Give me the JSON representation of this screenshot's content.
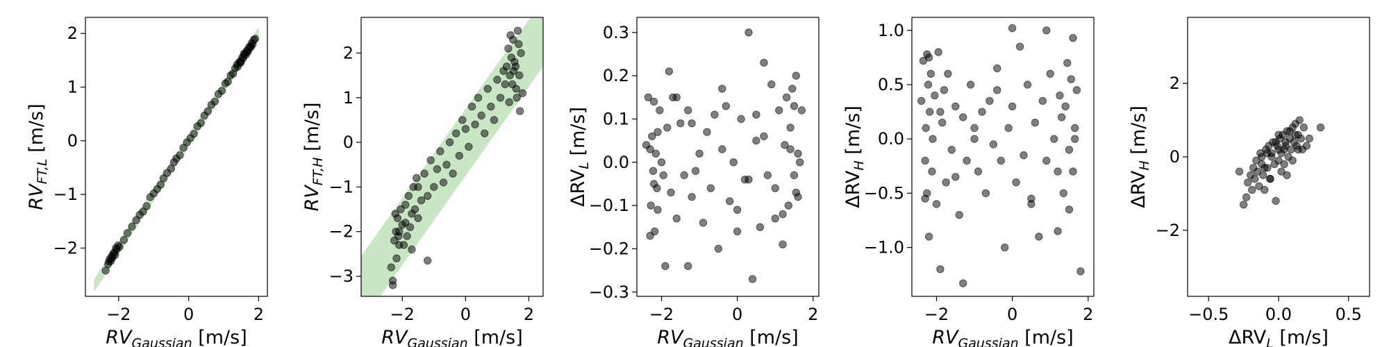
{
  "chart_data": [
    {
      "type": "scatter",
      "xlabel": {
        "main": "RV",
        "sub": "Gaussian",
        "unit": " [m/s]"
      },
      "ylabel": {
        "main": "RV",
        "sub": "FT,L",
        "unit": " [m/s]"
      },
      "xlim": [
        -2.95,
        2.25
      ],
      "ylim": [
        -2.9,
        2.3
      ],
      "xticks": [
        -2,
        0,
        2
      ],
      "yticks": [
        -2,
        -1,
        0,
        1,
        2
      ],
      "band": {
        "slope": 1,
        "intercept": 0,
        "half_width": 0.12,
        "x_range": [
          -2.7,
          2.0
        ]
      },
      "series": [
        {
          "x": [
            -2.37,
            -2.3,
            -2.28,
            -2.25,
            -2.22,
            -2.2,
            -2.18,
            -2.15,
            -2.12,
            -2.1,
            -2.08,
            -2.05,
            -2.02,
            -1.98,
            -1.85,
            -1.75,
            -1.62,
            -1.5,
            -1.4,
            -1.3,
            -1.2,
            -1.1,
            -1.0,
            -0.9,
            -0.8,
            -0.72,
            -0.62,
            -0.5,
            -0.42,
            -0.35,
            -0.25,
            -0.15,
            -0.05,
            0.05,
            0.15,
            0.25,
            0.35,
            0.45,
            0.55,
            0.65,
            0.75,
            0.85,
            0.95,
            1.05,
            1.12,
            1.2,
            1.27,
            1.33,
            1.4,
            1.45,
            1.5,
            1.53,
            1.56,
            1.6,
            1.63,
            1.66,
            1.7,
            1.73,
            1.76,
            1.8,
            1.83,
            1.86,
            1.9,
            1.38,
            1.48,
            1.58,
            1.68,
            1.78
          ],
          "y": [
            -2.42,
            -2.3,
            -2.25,
            -2.2,
            -2.24,
            -2.15,
            -2.18,
            -2.1,
            -2.08,
            -2.13,
            -2.0,
            -2.02,
            -1.95,
            -1.98,
            -1.85,
            -1.72,
            -1.6,
            -1.48,
            -1.38,
            -1.32,
            -1.22,
            -1.05,
            -0.98,
            -0.9,
            -0.82,
            -0.7,
            -0.6,
            -0.52,
            -0.4,
            -0.33,
            -0.27,
            -0.13,
            -0.03,
            0.05,
            0.13,
            0.27,
            0.33,
            0.47,
            0.55,
            0.67,
            0.73,
            0.87,
            0.93,
            1.07,
            1.1,
            1.22,
            1.25,
            1.35,
            1.38,
            1.47,
            1.48,
            1.55,
            1.54,
            1.62,
            1.6,
            1.68,
            1.68,
            1.75,
            1.74,
            1.82,
            1.8,
            1.88,
            1.9,
            1.42,
            1.45,
            1.62,
            1.65,
            1.75
          ]
        }
      ]
    },
    {
      "type": "scatter",
      "xlabel": {
        "main": "RV",
        "sub": "Gaussian",
        "unit": " [m/s]"
      },
      "ylabel": {
        "main": "RV",
        "sub": "FT,H",
        "unit": " [m/s]"
      },
      "xlim": [
        -3.3,
        2.45
      ],
      "ylim": [
        -3.45,
        2.8
      ],
      "xticks": [
        -2,
        0,
        2
      ],
      "yticks": [
        -3,
        -2,
        -1,
        0,
        1,
        2
      ],
      "band": {
        "slope": 1,
        "intercept": 0,
        "half_width": 0.75,
        "x_range": [
          -3.3,
          2.45
        ]
      },
      "series": [
        {
          "x": [
            -2.35,
            -2.3,
            -2.25,
            -2.22,
            -2.2,
            -2.18,
            -2.15,
            -2.12,
            -2.1,
            -2.05,
            -2.0,
            -1.95,
            -1.9,
            -1.85,
            -1.8,
            -1.75,
            -1.7,
            -1.65,
            -1.6,
            -1.55,
            -1.5,
            -1.4,
            -1.3,
            -1.2,
            -1.1,
            -1.0,
            -0.9,
            -0.8,
            -0.7,
            -0.6,
            -0.5,
            -0.4,
            -0.3,
            -0.2,
            -0.1,
            0.0,
            0.1,
            0.2,
            0.3,
            0.4,
            0.5,
            0.6,
            0.7,
            0.8,
            0.9,
            1.0,
            1.1,
            1.2,
            1.25,
            1.3,
            1.35,
            1.4,
            1.45,
            1.5,
            1.55,
            1.6,
            1.65,
            1.7,
            1.75,
            1.8,
            1.38,
            1.48,
            1.58,
            1.68,
            1.42,
            1.52,
            1.62,
            1.72,
            -2.3,
            -2.1,
            -1.9,
            -1.7,
            -1.5,
            -1.2
          ],
          "y": [
            -2.8,
            -3.1,
            -2.2,
            -1.6,
            -2.0,
            -2.6,
            -1.7,
            -2.1,
            -2.3,
            -1.5,
            -1.85,
            -2.3,
            -1.4,
            -2.1,
            -1.2,
            -1.9,
            -1.6,
            -1.0,
            -1.5,
            -0.8,
            -1.7,
            -1.3,
            -0.7,
            -1.2,
            -0.4,
            -1.0,
            -0.6,
            -0.2,
            -0.9,
            -0.5,
            0.0,
            -0.7,
            0.2,
            -0.3,
            0.5,
            0.3,
            -0.1,
            0.8,
            0.4,
            1.0,
            0.6,
            0.2,
            1.2,
            0.8,
            0.5,
            1.4,
            1.0,
            1.6,
            1.3,
            1.7,
            2.1,
            1.5,
            1.9,
            2.3,
            1.8,
            1.2,
            2.5,
            1.5,
            2.0,
            1.1,
            0.9,
            1.3,
            1.7,
            2.2,
            2.4,
            1.6,
            1.0,
            0.7,
            -3.2,
            -2.0,
            -1.8,
            -2.4,
            -1.0,
            -2.65
          ]
        }
      ]
    },
    {
      "type": "scatter",
      "xlabel": {
        "main": "RV",
        "sub": "Gaussian",
        "unit": " [m/s]"
      },
      "ylabel": {
        "main": "ΔRV",
        "sub": "L",
        "unit": " [m/s]"
      },
      "xlim": [
        -2.65,
        2.15
      ],
      "ylim": [
        -0.31,
        0.335
      ],
      "xticks": [
        -2,
        0,
        2
      ],
      "yticks": [
        -0.3,
        -0.2,
        -0.1,
        0.0,
        0.1,
        0.2,
        0.3
      ],
      "yfmt": 1,
      "series": [
        {
          "x": [
            -2.4,
            -2.35,
            -2.3,
            -2.28,
            -2.25,
            -2.22,
            -2.2,
            -2.18,
            -2.15,
            -2.12,
            -2.1,
            -2.05,
            -2.0,
            -1.95,
            -1.9,
            -1.85,
            -1.8,
            -1.75,
            -1.7,
            -1.6,
            -1.5,
            -1.4,
            -1.3,
            -1.2,
            -1.1,
            -1.0,
            -0.9,
            -0.8,
            -0.7,
            -0.6,
            -0.5,
            -0.4,
            -0.3,
            -0.2,
            -0.1,
            0.0,
            0.1,
            0.2,
            0.3,
            0.4,
            0.5,
            0.6,
            0.7,
            0.8,
            0.9,
            1.0,
            1.1,
            1.2,
            1.25,
            1.3,
            1.35,
            1.4,
            1.45,
            1.5,
            1.55,
            1.6,
            1.65,
            1.7,
            -2.3,
            -2.2,
            -2.1,
            -1.6,
            -1.2,
            -0.4,
            0.3,
            0.7,
            1.2,
            1.5,
            1.6,
            -1.3,
            0.0,
            0.5,
            1.0,
            1.4,
            1.55
          ],
          "y": [
            0.04,
            0.15,
            0.03,
            -0.1,
            0.06,
            -0.02,
            0.14,
            -0.16,
            0.02,
            -0.06,
            -0.11,
            0.12,
            0.0,
            -0.03,
            -0.24,
            0.08,
            0.21,
            -0.07,
            0.15,
            -0.13,
            0.09,
            -0.03,
            0.12,
            -0.08,
            -0.02,
            0.02,
            -0.14,
            0.07,
            -0.06,
            0.11,
            -0.2,
            0.03,
            0.13,
            -0.09,
            0.0,
            -0.11,
            0.1,
            -0.04,
            0.3,
            -0.27,
            0.05,
            -0.15,
            0.23,
            -0.03,
            0.18,
            -0.06,
            0.12,
            -0.19,
            0.04,
            0.15,
            -0.1,
            0.08,
            0.17,
            -0.03,
            0.2,
            -0.08,
            0.0,
            0.12,
            -0.17,
            -0.05,
            0.07,
            0.15,
            0.09,
            0.17,
            -0.04,
            0.06,
            -0.12,
            0.13,
            0.02,
            -0.24,
            -0.16,
            0.11,
            -0.13,
            0.03,
            -0.07
          ]
        }
      ]
    },
    {
      "type": "scatter",
      "xlabel": {
        "main": "RV",
        "sub": "Gaussian",
        "unit": " [m/s]"
      },
      "ylabel": {
        "main": "ΔRV",
        "sub": "H",
        "unit": " [m/s]"
      },
      "xlim": [
        -2.65,
        2.15
      ],
      "ylim": [
        -1.45,
        1.12
      ],
      "xticks": [
        -2,
        0,
        2
      ],
      "yticks": [
        -1.0,
        -0.5,
        0.0,
        0.5,
        1.0
      ],
      "yfmt": 1,
      "series": [
        {
          "x": [
            -2.4,
            -2.35,
            -2.3,
            -2.28,
            -2.25,
            -2.22,
            -2.2,
            -2.18,
            -2.15,
            -2.12,
            -2.1,
            -2.05,
            -2.0,
            -1.95,
            -1.9,
            -1.85,
            -1.8,
            -1.75,
            -1.7,
            -1.6,
            -1.5,
            -1.4,
            -1.3,
            -1.2,
            -1.1,
            -1.0,
            -0.9,
            -0.8,
            -0.7,
            -0.6,
            -0.5,
            -0.4,
            -0.3,
            -0.2,
            -0.1,
            0.0,
            0.1,
            0.2,
            0.3,
            0.4,
            0.5,
            0.6,
            0.7,
            0.8,
            0.9,
            1.0,
            1.1,
            1.2,
            1.25,
            1.3,
            1.35,
            1.4,
            1.45,
            1.5,
            1.55,
            1.6,
            1.65,
            1.7,
            -2.3,
            -2.2,
            -1.9,
            -1.5,
            -1.3,
            -0.4,
            0.0,
            0.9,
            1.6,
            1.8,
            -2.25,
            -1.0,
            0.5,
            1.2,
            1.5,
            1.65
          ],
          "y": [
            0.35,
            0.72,
            -0.2,
            0.1,
            -0.5,
            0.5,
            -0.9,
            0.25,
            0.6,
            -0.3,
            0.0,
            0.4,
            -0.6,
            0.8,
            -1.2,
            0.15,
            0.45,
            -0.4,
            0.6,
            -0.1,
            0.3,
            -0.7,
            0.2,
            -0.2,
            0.5,
            0.0,
            -0.3,
            0.25,
            -0.5,
            0.35,
            -0.05,
            0.45,
            -0.2,
            -1.0,
            0.1,
            0.3,
            -0.4,
            0.85,
            -0.15,
            0.5,
            -0.6,
            0.15,
            -0.9,
            0.35,
            -0.2,
            0.6,
            0.0,
            -0.3,
            0.4,
            0.2,
            -0.5,
            0.3,
            0.7,
            -0.1,
            0.55,
            -0.3,
            0.1,
            0.45,
            -0.55,
            0.75,
            0.25,
            -0.35,
            -1.33,
            0.65,
            1.02,
            1.0,
            0.93,
            -1.22,
            0.78,
            0.1,
            -0.55,
            -0.85,
            -0.65,
            0.0
          ]
        }
      ]
    },
    {
      "type": "scatter",
      "xlabel": {
        "main": "ΔRV",
        "sub": "L",
        "unit": " [m/s]"
      },
      "ylabel": {
        "main": "ΔRV",
        "sub": "H",
        "unit": " [m/s]"
      },
      "xlim": [
        -0.65,
        0.65
      ],
      "ylim": [
        -3.8,
        3.8
      ],
      "xticks": [
        -0.5,
        0.0,
        0.5
      ],
      "yticks": [
        -2,
        0,
        2
      ],
      "xfmt": 1,
      "series": [
        {
          "x": [
            -0.28,
            -0.25,
            -0.23,
            -0.22,
            -0.2,
            -0.19,
            -0.18,
            -0.17,
            -0.16,
            -0.15,
            -0.14,
            -0.13,
            -0.12,
            -0.11,
            -0.1,
            -0.09,
            -0.08,
            -0.07,
            -0.06,
            -0.05,
            -0.04,
            -0.03,
            -0.02,
            -0.01,
            0.0,
            0.01,
            0.02,
            0.03,
            0.04,
            0.05,
            0.06,
            0.07,
            0.08,
            0.09,
            0.1,
            0.11,
            0.12,
            0.13,
            0.14,
            0.15,
            0.16,
            0.17,
            0.18,
            0.2,
            0.22,
            0.3,
            -0.1,
            -0.05,
            0.0,
            0.05,
            0.1,
            -0.12,
            0.02,
            0.08,
            0.12,
            -0.06,
            -0.02,
            0.04,
            0.14,
            -0.08,
            0.0,
            0.06
          ],
          "y": [
            -0.4,
            -1.3,
            -1.1,
            -0.7,
            -0.5,
            -0.9,
            -0.3,
            -0.6,
            -0.1,
            -0.4,
            -0.8,
            0.1,
            -0.2,
            -0.5,
            -0.9,
            0.2,
            -0.3,
            0.3,
            -0.6,
            0.0,
            0.4,
            -0.2,
            -1.2,
            0.3,
            -0.1,
            0.5,
            0.1,
            0.6,
            0.2,
            0.3,
            0.7,
            0.0,
            0.5,
            0.2,
            0.8,
            0.4,
            0.9,
            0.3,
            0.6,
            1.0,
            0.5,
            0.2,
            0.8,
            0.3,
            0.5,
            0.8,
            -0.3,
            0.1,
            0.2,
            0.4,
            -0.1,
            0.0,
            -0.4,
            0.7,
            0.6,
            -0.6,
            0.4,
            -0.2,
            0.2,
            0.1,
            0.6,
            -0.5
          ]
        }
      ]
    }
  ]
}
